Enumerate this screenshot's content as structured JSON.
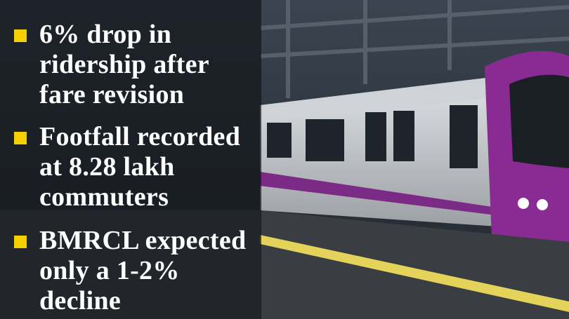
{
  "bullets": [
    {
      "lines": [
        "6% drop in",
        "ridership after",
        "fare revision"
      ]
    },
    {
      "lines": [
        "Footfall recorded",
        "at 8.28 lakh",
        "commuters"
      ]
    },
    {
      "lines": [
        "BMRCL expected",
        "only a 1-2%",
        "decline"
      ]
    }
  ]
}
